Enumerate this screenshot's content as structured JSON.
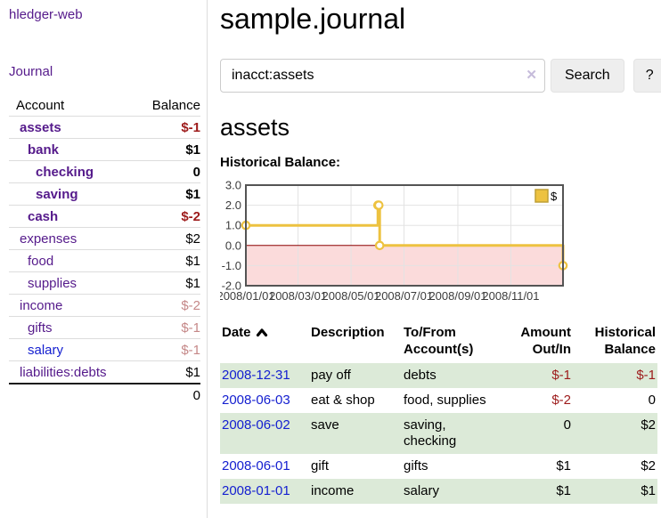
{
  "sidebar": {
    "app_title": "hledger-web",
    "journal_label": "Journal",
    "accounts_table": {
      "headers": {
        "account": "Account",
        "balance": "Balance"
      },
      "rows": [
        {
          "name": "assets",
          "depth": 1,
          "bold": true,
          "link": "purple",
          "balance": "$-1",
          "balance_style": "negative"
        },
        {
          "name": "bank",
          "depth": 2,
          "bold": true,
          "link": "purple",
          "balance": "$1",
          "balance_style": "normal"
        },
        {
          "name": "checking",
          "depth": 3,
          "bold": true,
          "link": "purple",
          "balance": "0",
          "balance_style": "normal"
        },
        {
          "name": "saving",
          "depth": 3,
          "bold": true,
          "link": "purple",
          "balance": "$1",
          "balance_style": "normal"
        },
        {
          "name": "cash",
          "depth": 2,
          "bold": true,
          "link": "purple",
          "balance": "$-2",
          "balance_style": "negative"
        },
        {
          "name": "expenses",
          "depth": 1,
          "bold": false,
          "link": "purple",
          "balance": "$2",
          "balance_style": "normal"
        },
        {
          "name": "food",
          "depth": 2,
          "bold": false,
          "link": "purple",
          "balance": "$1",
          "balance_style": "normal"
        },
        {
          "name": "supplies",
          "depth": 2,
          "bold": false,
          "link": "purple",
          "balance": "$1",
          "balance_style": "normal"
        },
        {
          "name": "income",
          "depth": 1,
          "bold": false,
          "link": "purple",
          "balance": "$-2",
          "balance_style": "negative-dim"
        },
        {
          "name": "gifts",
          "depth": 2,
          "bold": false,
          "link": "purple",
          "balance": "$-1",
          "balance_style": "negative-dim"
        },
        {
          "name": "salary",
          "depth": 2,
          "bold": false,
          "link": "blue",
          "balance": "$-1",
          "balance_style": "negative-dim"
        },
        {
          "name": "liabilities:debts",
          "depth": 1,
          "bold": false,
          "link": "purple",
          "balance": "$1",
          "balance_style": "normal"
        }
      ],
      "total": "0"
    }
  },
  "main": {
    "title": "sample.journal",
    "search": {
      "value": "inacct:assets",
      "clear_icon": "✕",
      "button_label": "Search",
      "help_label": "?"
    },
    "account_heading": "assets",
    "chart_heading": "Historical Balance:",
    "transactions": {
      "headers": {
        "date": "Date",
        "sort": "ascending",
        "description": "Description",
        "to_from": [
          "To/From",
          "Account(s)"
        ],
        "amount": [
          "Amount",
          "Out/In"
        ],
        "historical": [
          "Historical",
          "Balance"
        ]
      },
      "rows": [
        {
          "date": "2008-12-31",
          "description": "pay off",
          "accounts": "debts",
          "amount": "$-1",
          "amount_neg": true,
          "balance": "$-1",
          "balance_neg": true
        },
        {
          "date": "2008-06-03",
          "description": "eat & shop",
          "accounts": "food, supplies",
          "amount": "$-2",
          "amount_neg": true,
          "balance": "0",
          "balance_neg": false
        },
        {
          "date": "2008-06-02",
          "description": "save",
          "accounts": "saving, checking",
          "amount": "0",
          "amount_neg": false,
          "balance": "$2",
          "balance_neg": false
        },
        {
          "date": "2008-06-01",
          "description": "gift",
          "accounts": "gifts",
          "amount": "$1",
          "amount_neg": false,
          "balance": "$2",
          "balance_neg": false
        },
        {
          "date": "2008-01-01",
          "description": "income",
          "accounts": "salary",
          "amount": "$1",
          "amount_neg": false,
          "balance": "$1",
          "balance_neg": false
        }
      ]
    }
  },
  "chart_data": {
    "type": "line",
    "title": "Historical Balance:",
    "step": true,
    "series": [
      {
        "name": "$",
        "color": "#edc240",
        "points": [
          [
            "2008-01-01",
            1
          ],
          [
            "2008-06-01",
            2
          ],
          [
            "2008-06-02",
            2
          ],
          [
            "2008-06-03",
            0
          ],
          [
            "2008-12-31",
            -1
          ]
        ]
      }
    ],
    "x_range": [
      "2008-01-01",
      "2008-12-31"
    ],
    "x_tick_labels": [
      "2008/01/01",
      "2008/03/01",
      "2008/05/01",
      "2008/07/01",
      "2008/09/01",
      "2008/11/01"
    ],
    "y_ticks": [
      3.0,
      2.0,
      1.0,
      0.0,
      -1.0,
      -2.0
    ],
    "ylim": [
      -2,
      3
    ],
    "grid": true,
    "legend_position": "top-right",
    "negative_region_color": "#fbdbdb",
    "zero_line_color": "#8b0000",
    "plot_border_color": "#545454",
    "grid_color": "#e3e3e3"
  },
  "colors": {
    "link_purple": "#551a8b",
    "link_blue": "#1520d0",
    "negative": "#9d1b1b",
    "negative_dim": "#c58888",
    "row_stripe_green": "#dcead8",
    "series_gold": "#edc240",
    "divider": "#dddddd"
  }
}
